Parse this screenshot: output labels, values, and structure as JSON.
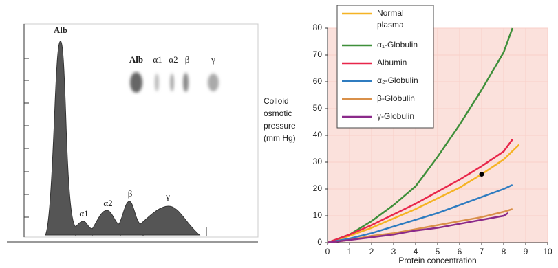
{
  "electrophoresis": {
    "peak_labels": [
      "Alb",
      "α1",
      "α2",
      "β",
      "γ"
    ],
    "band_labels": [
      "Alb",
      "α1",
      "α2",
      "β",
      "γ"
    ]
  },
  "chart_data": {
    "type": "line",
    "ylabel": [
      "Colloid",
      "osmotic",
      "pressure",
      "(mm Hg)"
    ],
    "xlabel": "Protein concentration",
    "xlim": [
      0,
      10
    ],
    "xticks": [
      0,
      1,
      2,
      3,
      4,
      5,
      6,
      7,
      8,
      9,
      10
    ],
    "ylim": [
      0,
      80
    ],
    "yticks": [
      0,
      10,
      20,
      30,
      40,
      50,
      60,
      70,
      80
    ],
    "grid": true,
    "legend": "top-left",
    "series": [
      {
        "name": "Normal plasma",
        "color": "#f5b324",
        "x": [
          0,
          1,
          2,
          3,
          4,
          5,
          6,
          7,
          8,
          8.7
        ],
        "values": [
          0,
          2.5,
          5.5,
          9,
          12.5,
          16.5,
          20.5,
          25.5,
          31,
          36.5
        ]
      },
      {
        "name": "α₁-Globulin",
        "color": "#3f8f3a",
        "x": [
          0,
          1,
          2,
          3,
          4,
          5,
          6,
          7,
          8,
          8.4
        ],
        "values": [
          0,
          3,
          8,
          14,
          21,
          32,
          44,
          57,
          71,
          80
        ]
      },
      {
        "name": "Albumin",
        "color": "#e8264a",
        "x": [
          0,
          1,
          2,
          3,
          4,
          5,
          6,
          7,
          8,
          8.4
        ],
        "values": [
          0,
          3,
          6.5,
          10.5,
          14.5,
          19,
          23.5,
          28.5,
          34,
          38.5
        ]
      },
      {
        "name": "α₂-Globulin",
        "color": "#2f7cc0",
        "x": [
          0,
          1,
          2,
          3,
          4,
          5,
          6,
          7,
          8,
          8.4
        ],
        "values": [
          0,
          1.5,
          3.5,
          6,
          8.5,
          11,
          14,
          17,
          20,
          21.5
        ]
      },
      {
        "name": "β-Globulin",
        "color": "#d9904a",
        "x": [
          0,
          1,
          2,
          3,
          4,
          5,
          6,
          7,
          8,
          8.4
        ],
        "values": [
          0,
          1,
          2.5,
          3.5,
          5,
          6.5,
          8,
          9.5,
          11.5,
          12.5
        ]
      },
      {
        "name": "γ-Globulin",
        "color": "#8b2a8a",
        "x": [
          0,
          1,
          2,
          3,
          4,
          5,
          6,
          7,
          8,
          8.2
        ],
        "values": [
          0,
          1,
          2,
          3,
          4.5,
          5.5,
          7,
          8.5,
          10,
          11
        ]
      }
    ],
    "highlight_point": {
      "x": 7,
      "y": 25.5
    }
  }
}
